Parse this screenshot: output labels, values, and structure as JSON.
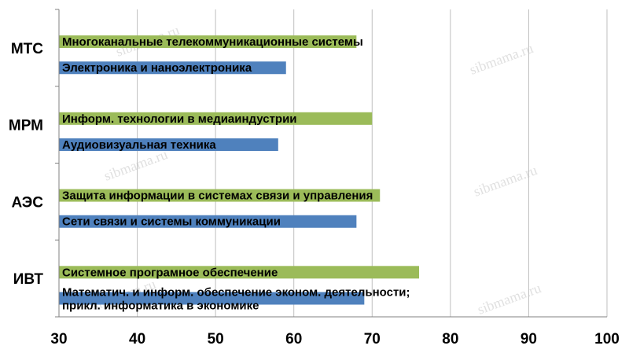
{
  "chart_data": {
    "type": "bar",
    "orientation": "horizontal",
    "xlim": [
      30,
      100
    ],
    "xticks": [
      30,
      40,
      50,
      60,
      70,
      80,
      90,
      100
    ],
    "grid": true,
    "legend": "none",
    "categories": [
      "МТС",
      "МРМ",
      "АЭС",
      "ИВТ"
    ],
    "bars": [
      {
        "category": "МТС",
        "label": "Многоканальные телекоммуникационные системы",
        "value": 68,
        "color": "#9bbb59"
      },
      {
        "category": "МТС",
        "label": "Электроника и наноэлектроника",
        "value": 59,
        "color": "#4f81bd"
      },
      {
        "category": "МРМ",
        "label": "Информ. технологии в медиаиндустрии",
        "value": 70,
        "color": "#9bbb59"
      },
      {
        "category": "МРМ",
        "label": "Аудиовизуальная техника",
        "value": 58,
        "color": "#4f81bd"
      },
      {
        "category": "АЭС",
        "label": "Защита информации в системах связи и управления",
        "value": 71,
        "color": "#9bbb59"
      },
      {
        "category": "АЭС",
        "label": "Сети связи и системы коммуникации",
        "value": 68,
        "color": "#4f81bd"
      },
      {
        "category": "ИВТ",
        "label": "Системное програмное обеспечение",
        "value": 76,
        "color": "#9bbb59"
      },
      {
        "category": "ИВТ",
        "label": [
          "Математич. и информ. обеспечение эконом. деятельности;",
          "прикл. информатика в экономике"
        ],
        "value": 69,
        "color": "#4f81bd"
      }
    ],
    "watermark": "sibmama.ru"
  }
}
